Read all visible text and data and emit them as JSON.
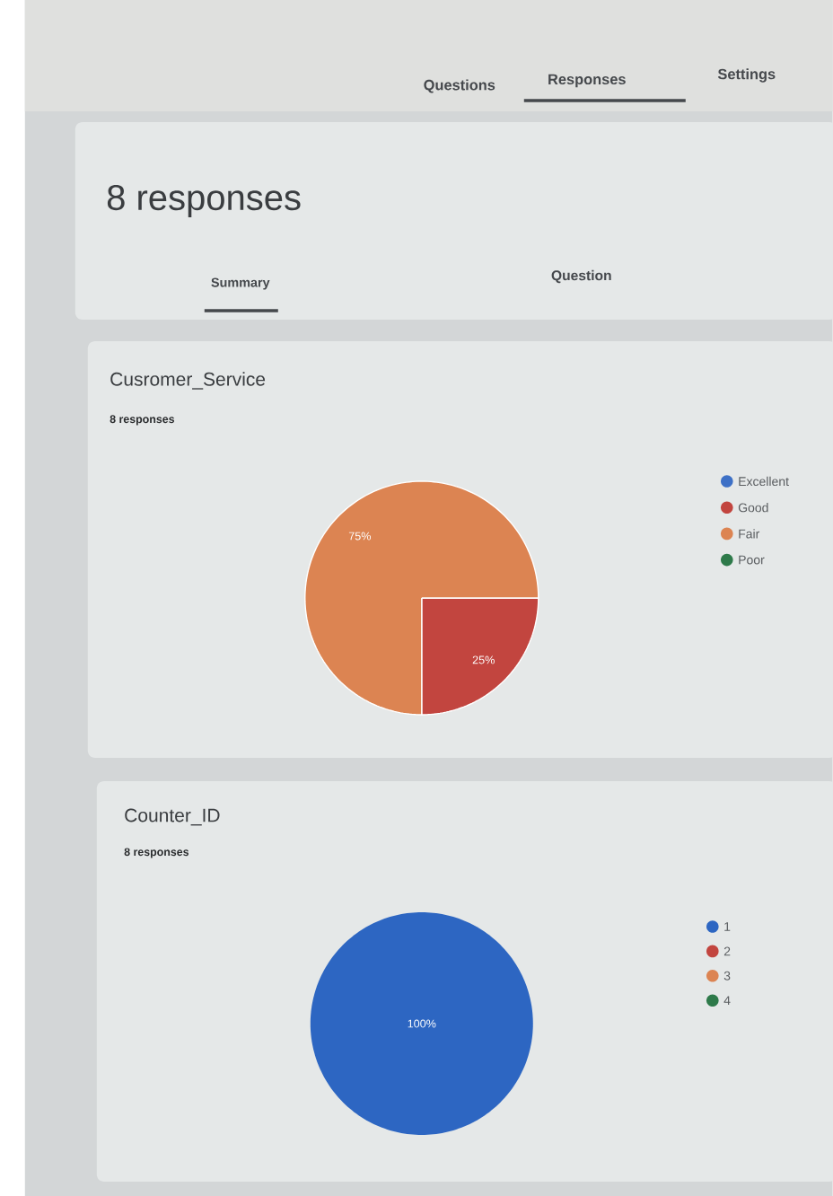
{
  "chart_data": [
    {
      "type": "other",
      "title": "8 responses",
      "annotations": [
        "Questions",
        "Responses",
        "Settings",
        "Summary",
        "Question"
      ]
    },
    {
      "type": "pie",
      "title": "Cusromer_Service",
      "subtitle": "8 responses",
      "categories": [
        "Excellent",
        "Good",
        "Fair",
        "Poor"
      ],
      "values": [
        0,
        25,
        75,
        0
      ],
      "colors": [
        "#3d70c6",
        "#c2453f",
        "#dc8452",
        "#2e7a4a"
      ],
      "value_labels": [
        null,
        "25%",
        "75%",
        null
      ],
      "legend": "right"
    },
    {
      "type": "pie",
      "title": "Counter_ID",
      "subtitle": "8 responses",
      "categories": [
        "1",
        "2",
        "3",
        "4"
      ],
      "values": [
        100,
        0,
        0,
        0
      ],
      "colors": [
        "#2d66c2",
        "#c2453f",
        "#dc8452",
        "#2e7a4a"
      ],
      "value_labels": [
        "100%",
        null,
        null,
        null
      ],
      "legend": "right"
    }
  ]
}
